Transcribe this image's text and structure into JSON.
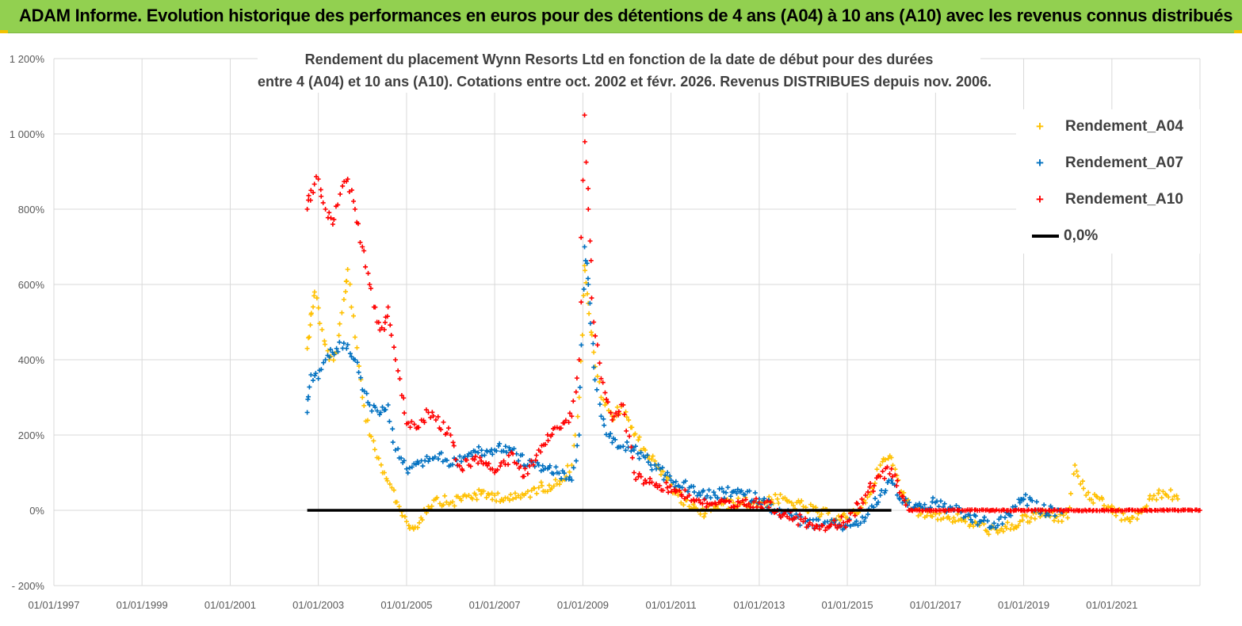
{
  "banner": {
    "title": "ADAM Informe. Evolution historique des performances en euros pour des détentions de 4 ans (A04) à 10 ans (A10) avec les revenus connus distribués"
  },
  "colors": {
    "banner_bg": "#92d050",
    "A04": "#ffc000",
    "A07": "#0070c0",
    "A10": "#ff0000",
    "zero_line": "#000000",
    "grid": "#d9d9d9"
  },
  "chart_data": {
    "type": "scatter",
    "title_line1": "Rendement du placement Wynn Resorts Ltd en fonction de la date de début pour des durées",
    "title_line2": "entre 4 (A04) et 10 ans (A10).  Cotations entre oct. 2002 et févr. 2026. Revenus DISTRIBUES depuis nov. 2006.",
    "xlim": [
      "1997-01-01",
      "2023-01-01"
    ],
    "x_ticks": [
      "01/01/1997",
      "01/01/1999",
      "01/01/2001",
      "01/01/2003",
      "01/01/2005",
      "01/01/2007",
      "01/01/2009",
      "01/01/2011",
      "01/01/2013",
      "01/01/2015",
      "01/01/2017",
      "01/01/2019",
      "01/01/2021"
    ],
    "ylim": [
      -200,
      1200
    ],
    "y_ticks": [
      "- 200%",
      "0%",
      "200%",
      "400%",
      "600%",
      "800%",
      "1 000%",
      "1 200%"
    ],
    "y_unit": "%",
    "legend_position": "top-right",
    "series": [
      {
        "name": "Rendement_A04",
        "marker": "+",
        "points": [
          [
            "2002-10-01",
            430
          ],
          [
            "2002-11-01",
            520
          ],
          [
            "2002-12-01",
            580
          ],
          [
            "2003-02-01",
            480
          ],
          [
            "2003-04-01",
            400
          ],
          [
            "2003-06-01",
            420
          ],
          [
            "2003-08-01",
            560
          ],
          [
            "2003-09-01",
            640
          ],
          [
            "2003-11-01",
            460
          ],
          [
            "2004-01-01",
            300
          ],
          [
            "2004-03-01",
            200
          ],
          [
            "2004-05-01",
            140
          ],
          [
            "2004-07-01",
            100
          ],
          [
            "2004-09-01",
            60
          ],
          [
            "2004-11-01",
            10
          ],
          [
            "2005-01-01",
            -30
          ],
          [
            "2005-03-01",
            -50
          ],
          [
            "2005-05-01",
            -20
          ],
          [
            "2005-07-01",
            10
          ],
          [
            "2005-09-01",
            30
          ],
          [
            "2006-01-01",
            20
          ],
          [
            "2006-06-01",
            40
          ],
          [
            "2007-01-01",
            40
          ],
          [
            "2007-06-01",
            30
          ],
          [
            "2007-09-01",
            40
          ],
          [
            "2008-01-01",
            60
          ],
          [
            "2008-06-01",
            70
          ],
          [
            "2008-10-01",
            120
          ],
          [
            "2008-12-01",
            300
          ],
          [
            "2009-01-15",
            650
          ],
          [
            "2009-02-15",
            550
          ],
          [
            "2009-04-01",
            420
          ],
          [
            "2009-06-01",
            300
          ],
          [
            "2009-09-01",
            250
          ],
          [
            "2009-12-01",
            280
          ],
          [
            "2010-03-01",
            200
          ],
          [
            "2010-06-01",
            160
          ],
          [
            "2010-09-01",
            120
          ],
          [
            "2010-12-01",
            80
          ],
          [
            "2011-03-01",
            40
          ],
          [
            "2011-06-01",
            10
          ],
          [
            "2011-09-01",
            -10
          ],
          [
            "2012-01-01",
            10
          ],
          [
            "2012-06-01",
            20
          ],
          [
            "2013-01-01",
            20
          ],
          [
            "2013-06-01",
            30
          ],
          [
            "2014-01-01",
            10
          ],
          [
            "2014-06-01",
            -10
          ],
          [
            "2015-01-01",
            -20
          ],
          [
            "2015-06-01",
            20
          ],
          [
            "2015-10-01",
            120
          ],
          [
            "2016-01-01",
            140
          ],
          [
            "2016-04-01",
            40
          ],
          [
            "2016-09-01",
            -10
          ],
          [
            "2017-01-01",
            -10
          ],
          [
            "2017-06-01",
            -20
          ],
          [
            "2018-01-01",
            -40
          ],
          [
            "2018-06-01",
            -60
          ],
          [
            "2018-12-01",
            -30
          ],
          [
            "2019-06-01",
            -10
          ],
          [
            "2020-01-01",
            -20
          ],
          [
            "2020-03-01",
            120
          ],
          [
            "2020-06-01",
            40
          ],
          [
            "2020-12-01",
            10
          ],
          [
            "2021-06-01",
            -30
          ],
          [
            "2021-12-01",
            30
          ],
          [
            "2022-03-01",
            50
          ],
          [
            "2022-07-01",
            30
          ]
        ]
      },
      {
        "name": "Rendement_A07",
        "marker": "+",
        "points": [
          [
            "2002-10-01",
            260
          ],
          [
            "2002-11-01",
            360
          ],
          [
            "2003-01-01",
            350
          ],
          [
            "2003-03-01",
            400
          ],
          [
            "2003-06-01",
            430
          ],
          [
            "2003-09-01",
            440
          ],
          [
            "2003-11-01",
            400
          ],
          [
            "2004-01-01",
            320
          ],
          [
            "2004-03-01",
            280
          ],
          [
            "2004-06-01",
            260
          ],
          [
            "2004-08-01",
            280
          ],
          [
            "2004-10-01",
            160
          ],
          [
            "2005-01-01",
            110
          ],
          [
            "2005-04-01",
            130
          ],
          [
            "2005-07-01",
            130
          ],
          [
            "2005-10-01",
            150
          ],
          [
            "2006-01-01",
            120
          ],
          [
            "2006-06-01",
            150
          ],
          [
            "2007-01-01",
            160
          ],
          [
            "2007-04-01",
            170
          ],
          [
            "2007-07-01",
            150
          ],
          [
            "2007-10-01",
            120
          ],
          [
            "2008-01-01",
            120
          ],
          [
            "2008-06-01",
            100
          ],
          [
            "2008-10-01",
            80
          ],
          [
            "2008-12-01",
            200
          ],
          [
            "2009-01-15",
            700
          ],
          [
            "2009-02-15",
            600
          ],
          [
            "2009-04-01",
            380
          ],
          [
            "2009-06-01",
            250
          ],
          [
            "2009-09-01",
            180
          ],
          [
            "2009-12-01",
            170
          ],
          [
            "2010-03-01",
            160
          ],
          [
            "2010-06-01",
            140
          ],
          [
            "2010-09-01",
            110
          ],
          [
            "2011-01-01",
            80
          ],
          [
            "2011-06-01",
            60
          ],
          [
            "2011-09-01",
            40
          ],
          [
            "2012-01-01",
            40
          ],
          [
            "2012-06-01",
            50
          ],
          [
            "2013-01-01",
            30
          ],
          [
            "2013-06-01",
            0
          ],
          [
            "2014-01-01",
            -30
          ],
          [
            "2014-06-01",
            -40
          ],
          [
            "2015-01-01",
            -40
          ],
          [
            "2015-06-01",
            -20
          ],
          [
            "2015-10-01",
            40
          ],
          [
            "2016-01-01",
            80
          ],
          [
            "2016-04-01",
            20
          ],
          [
            "2016-09-01",
            10
          ],
          [
            "2017-01-01",
            20
          ],
          [
            "2017-06-01",
            0
          ],
          [
            "2018-01-01",
            -30
          ],
          [
            "2018-06-01",
            -40
          ],
          [
            "2018-12-01",
            20
          ],
          [
            "2019-01-01",
            30
          ],
          [
            "2019-06-01",
            0
          ],
          [
            "2019-12-01",
            0
          ]
        ]
      },
      {
        "name": "Rendement_A10",
        "marker": "+",
        "points": [
          [
            "2002-10-01",
            800
          ],
          [
            "2002-11-01",
            850
          ],
          [
            "2003-01-01",
            880
          ],
          [
            "2003-03-01",
            800
          ],
          [
            "2003-05-01",
            760
          ],
          [
            "2003-07-01",
            840
          ],
          [
            "2003-09-01",
            880
          ],
          [
            "2003-11-01",
            800
          ],
          [
            "2004-01-01",
            700
          ],
          [
            "2004-03-01",
            600
          ],
          [
            "2004-05-01",
            500
          ],
          [
            "2004-07-01",
            480
          ],
          [
            "2004-08-01",
            540
          ],
          [
            "2004-10-01",
            400
          ],
          [
            "2005-01-01",
            230
          ],
          [
            "2005-04-01",
            220
          ],
          [
            "2005-07-01",
            260
          ],
          [
            "2005-09-01",
            240
          ],
          [
            "2006-01-01",
            200
          ],
          [
            "2006-03-01",
            120
          ],
          [
            "2006-06-01",
            120
          ],
          [
            "2006-09-01",
            140
          ],
          [
            "2007-01-01",
            100
          ],
          [
            "2007-06-01",
            150
          ],
          [
            "2007-09-01",
            90
          ],
          [
            "2008-01-01",
            160
          ],
          [
            "2008-06-01",
            220
          ],
          [
            "2008-10-01",
            250
          ],
          [
            "2008-12-01",
            400
          ],
          [
            "2009-01-15",
            1050
          ],
          [
            "2009-02-15",
            800
          ],
          [
            "2009-04-01",
            500
          ],
          [
            "2009-06-01",
            350
          ],
          [
            "2009-09-01",
            240
          ],
          [
            "2009-12-01",
            280
          ],
          [
            "2010-03-01",
            100
          ],
          [
            "2010-06-01",
            80
          ],
          [
            "2010-09-01",
            70
          ],
          [
            "2010-12-01",
            60
          ],
          [
            "2011-06-01",
            40
          ],
          [
            "2011-09-01",
            20
          ],
          [
            "2012-01-01",
            20
          ],
          [
            "2012-06-01",
            10
          ],
          [
            "2013-01-01",
            20
          ],
          [
            "2013-06-01",
            0
          ],
          [
            "2014-01-01",
            -30
          ],
          [
            "2014-06-01",
            -40
          ],
          [
            "2015-01-01",
            -30
          ],
          [
            "2015-06-01",
            40
          ],
          [
            "2015-10-01",
            90
          ],
          [
            "2016-01-01",
            110
          ],
          [
            "2016-06-01",
            0
          ],
          [
            "2017-01-01",
            0
          ],
          [
            "2018-01-01",
            0
          ],
          [
            "2019-01-01",
            0
          ],
          [
            "2020-01-01",
            0
          ],
          [
            "2021-01-01",
            0
          ],
          [
            "2022-01-01",
            0
          ],
          [
            "2022-12-31",
            0
          ]
        ]
      },
      {
        "name": "0,0%",
        "line": true,
        "points": [
          [
            "2002-10-01",
            0
          ],
          [
            "2016-01-01",
            0
          ]
        ]
      }
    ]
  }
}
